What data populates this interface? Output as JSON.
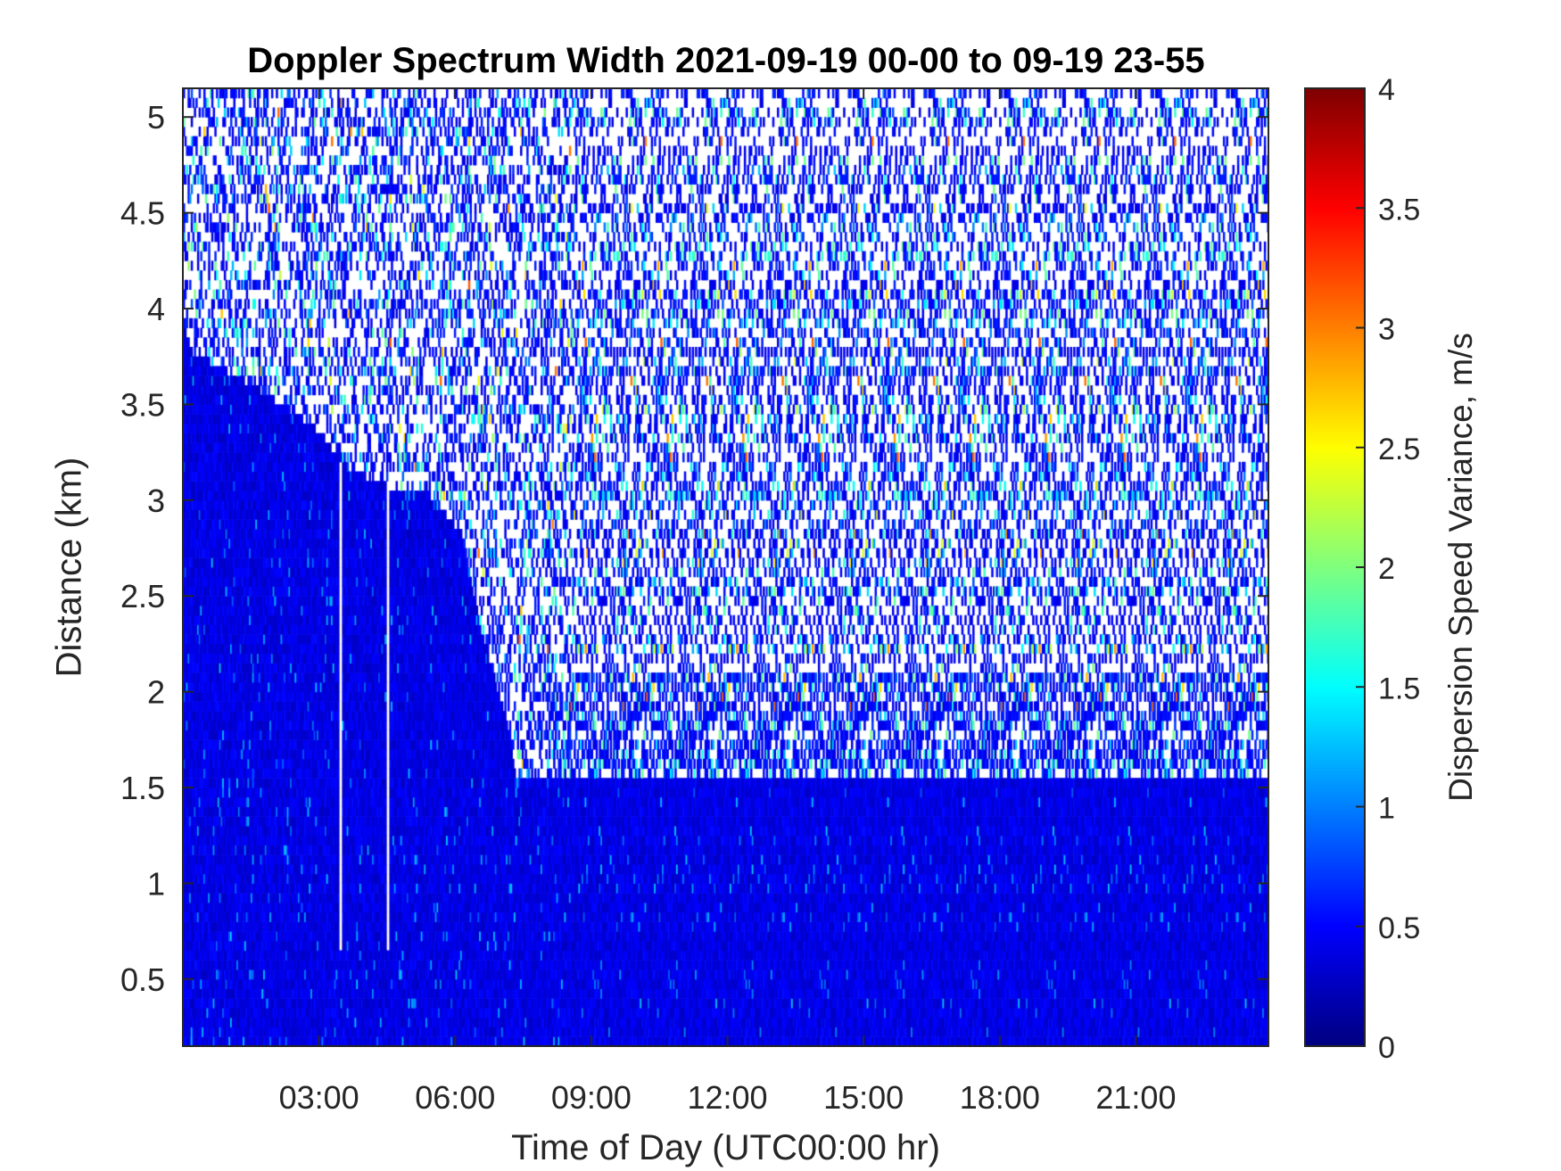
{
  "chart_data": {
    "type": "heatmap",
    "title": "Doppler Spectrum Width 2021-09-19 00-00 to 09-19 23-55",
    "xlabel": "Time of Day (UTC00:00 hr)",
    "ylabel": "Distance (km)",
    "xlim": [
      0,
      23.92
    ],
    "ylim": [
      0.15,
      5.15
    ],
    "x_ticks": [
      3,
      6,
      9,
      12,
      15,
      18,
      21
    ],
    "x_tick_labels": [
      "03:00",
      "06:00",
      "09:00",
      "12:00",
      "15:00",
      "18:00",
      "21:00"
    ],
    "y_ticks": [
      0.5,
      1,
      1.5,
      2,
      2.5,
      3,
      3.5,
      4,
      4.5,
      5
    ],
    "y_tick_labels": [
      "0.5",
      "1",
      "1.5",
      "2",
      "2.5",
      "3",
      "3.5",
      "4",
      "4.5",
      "5"
    ],
    "colorbar": {
      "label": "Dispersion Speed Variance, m/s",
      "range": [
        0,
        4
      ],
      "colormap": "jet",
      "ticks": [
        0,
        0.5,
        1,
        1.5,
        2,
        2.5,
        3,
        3.5,
        4
      ],
      "tick_labels": [
        "0",
        "0.5",
        "1",
        "1.5",
        "2",
        "2.5",
        "3",
        "3.5",
        "4"
      ]
    },
    "dense_layer_top_km": [
      [
        0,
        3.9
      ],
      [
        0.2,
        3.75
      ],
      [
        1.7,
        3.55
      ],
      [
        2.9,
        3.35
      ],
      [
        3.6,
        3.15
      ],
      [
        4.45,
        3.05
      ],
      [
        5.45,
        3.0
      ],
      [
        6.1,
        2.8
      ],
      [
        6.55,
        2.3
      ],
      [
        7.2,
        1.75
      ],
      [
        7.3,
        1.55
      ],
      [
        23.92,
        1.55
      ]
    ],
    "data_gaps_hr": [
      3.45,
      4.5
    ],
    "typical_value_dense": 0.4,
    "typical_value_sparse": 0.6,
    "grid": false
  }
}
